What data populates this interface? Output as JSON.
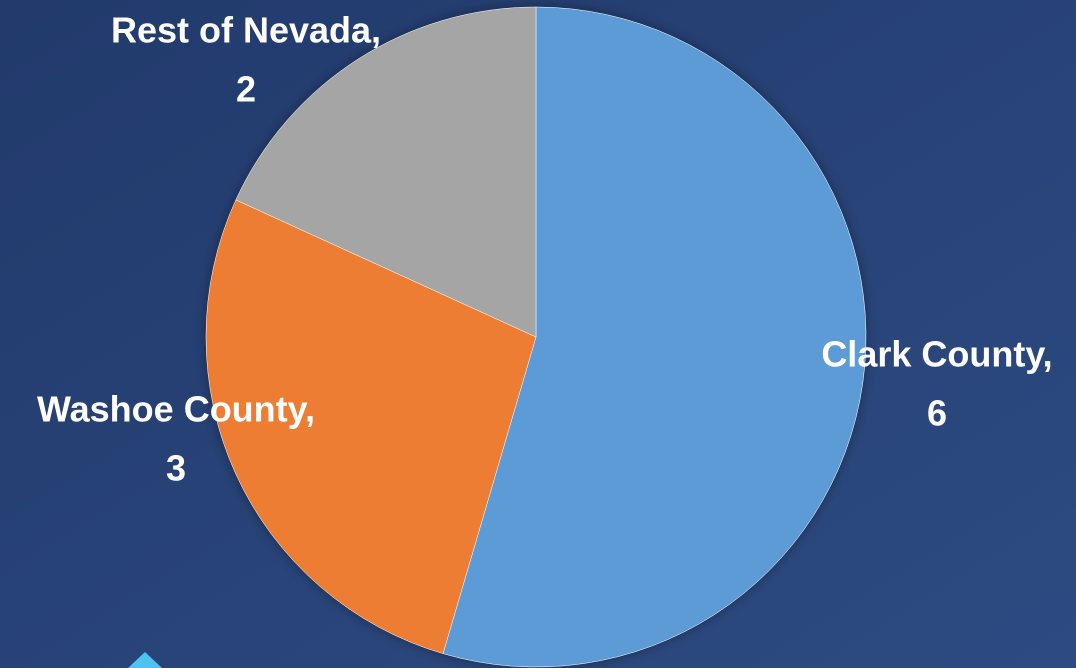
{
  "chart_data": {
    "type": "pie",
    "categories": [
      "Clark County,",
      "Washoe County,",
      "Rest of Nevada,"
    ],
    "values": [
      6,
      3,
      2
    ],
    "colors": [
      "#5b9bd5",
      "#ed7d31",
      "#a5a5a5"
    ],
    "start_angle": 0,
    "direction": "clockwise"
  }
}
